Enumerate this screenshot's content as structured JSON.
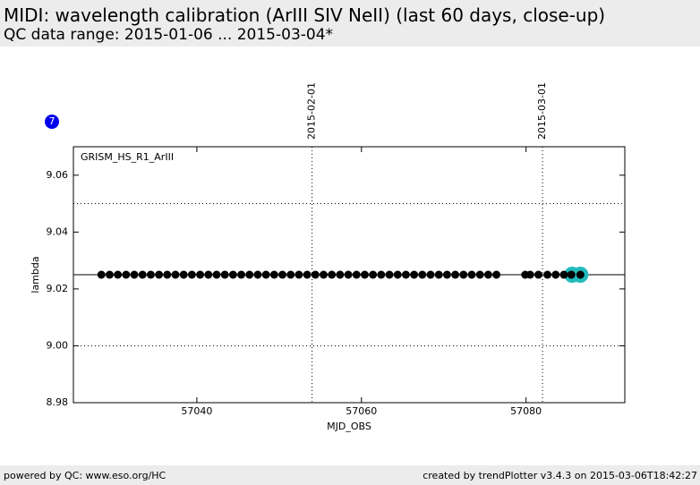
{
  "header": {
    "title": "MIDI: wavelength calibration (ArIII SIV NeII) (last 60 days, close-up)",
    "subtitle": "QC data range: 2015-01-06 ... 2015-03-04*"
  },
  "badge": "7",
  "chart_data": {
    "type": "scatter",
    "annotation": "GRISM_HS_R1_ArIII",
    "xlabel": "MJD_OBS",
    "ylabel": "lambda",
    "xlim": [
      57025,
      57092
    ],
    "ylim": [
      8.98,
      9.07
    ],
    "xticks": [
      57040,
      57060,
      57080
    ],
    "yticks": [
      8.98,
      {
        "value": 9,
        "label": "9.00"
      },
      9.02,
      9.04,
      9.06
    ],
    "x2ticks": [
      {
        "value": 57054,
        "label": "2015-02-01"
      },
      {
        "value": 57082,
        "label": "2015-03-01"
      }
    ],
    "reference_line": 9.025,
    "dotted_lines": [
      9,
      9.05
    ],
    "series": [
      {
        "color": "#22bbbb",
        "size": 9,
        "x": [
          57085.6,
          57086.6
        ],
        "values": [
          9.025,
          9.025
        ]
      },
      {
        "color": "#000000",
        "size": 4.5,
        "x": [
          57028.4,
          57029.4,
          57030.4,
          57031.4,
          57032.4,
          57033.4,
          57034.4,
          57035.4,
          57036.4,
          57037.4,
          57038.4,
          57039.4,
          57040.4,
          57041.4,
          57042.4,
          57043.4,
          57044.4,
          57045.4,
          57046.4,
          57047.4,
          57048.4,
          57049.4,
          57050.4,
          57051.4,
          57052.4,
          57053.4,
          57054.4,
          57055.4,
          57056.4,
          57057.4,
          57058.4,
          57059.4,
          57060.4,
          57061.4,
          57062.4,
          57063.4,
          57064.4,
          57065.4,
          57066.4,
          57067.4,
          57068.4,
          57069.4,
          57070.4,
          57071.4,
          57072.4,
          57073.4,
          57074.4,
          57075.4,
          57076.4,
          57079.9,
          57080.5,
          57081.5,
          57082.6,
          57083.6,
          57084.6,
          57085.5,
          57086.6
        ],
        "values": [
          9.025,
          9.025,
          9.025,
          9.025,
          9.025,
          9.025,
          9.025,
          9.025,
          9.025,
          9.025,
          9.025,
          9.025,
          9.025,
          9.025,
          9.025,
          9.025,
          9.025,
          9.025,
          9.025,
          9.025,
          9.025,
          9.025,
          9.025,
          9.025,
          9.025,
          9.025,
          9.025,
          9.025,
          9.025,
          9.025,
          9.025,
          9.025,
          9.025,
          9.025,
          9.025,
          9.025,
          9.025,
          9.025,
          9.025,
          9.025,
          9.025,
          9.025,
          9.025,
          9.025,
          9.025,
          9.025,
          9.025,
          9.025,
          9.025,
          9.025,
          9.025,
          9.025,
          9.025,
          9.025,
          9.025,
          9.025,
          9.025
        ]
      }
    ]
  },
  "footer": {
    "left": "powered by QC: www.eso.org/HC",
    "right": "created by trendPlotter v3.4.3 on 2015-03-06T18:42:27"
  }
}
